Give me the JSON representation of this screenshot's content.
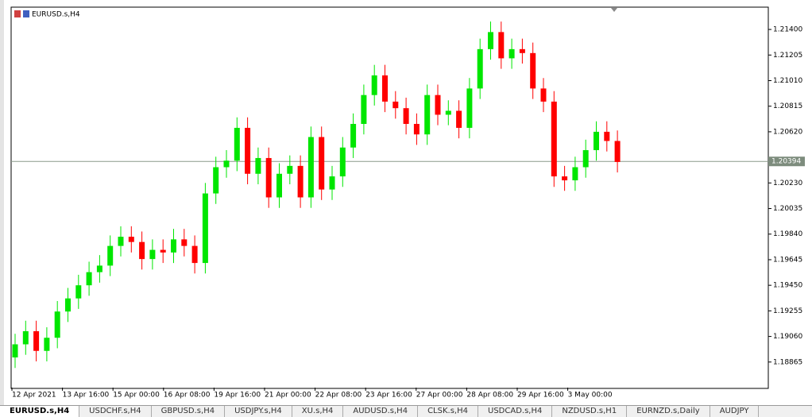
{
  "window": {
    "title": "EURUSD.s,H4"
  },
  "chart_data": {
    "type": "candlestick",
    "title": "EURUSD.s,H4",
    "ylim": [
      1.1867,
      1.2157
    ],
    "yticks": [
      {
        "value": 1.214,
        "label": "1.21400"
      },
      {
        "value": 1.21205,
        "label": "1.21205"
      },
      {
        "value": 1.2101,
        "label": "1.21010"
      },
      {
        "value": 1.20815,
        "label": "1.20815"
      },
      {
        "value": 1.2062,
        "label": "1.20620"
      },
      {
        "value": 1.2023,
        "label": "1.20230"
      },
      {
        "value": 1.20035,
        "label": "1.20035"
      },
      {
        "value": 1.1984,
        "label": "1.19840"
      },
      {
        "value": 1.19645,
        "label": "1.19645"
      },
      {
        "value": 1.1945,
        "label": "1.19450"
      },
      {
        "value": 1.19255,
        "label": "1.19255"
      },
      {
        "value": 1.1906,
        "label": "1.19060"
      },
      {
        "value": 1.18865,
        "label": "1.18865"
      }
    ],
    "time_labels": [
      "12 Apr 2021",
      "13 Apr 16:00",
      "15 Apr 00:00",
      "16 Apr 08:00",
      "19 Apr 16:00",
      "21 Apr 00:00",
      "22 Apr 08:00",
      "23 Apr 16:00",
      "27 Apr 00:00",
      "28 Apr 08:00",
      "29 Apr 16:00",
      "3 May 00:00"
    ],
    "current_price": {
      "value": 1.20394,
      "label": "1.20394"
    },
    "bull_color": "#00e600",
    "bear_color": "#ff0000",
    "open": [
      1.189,
      1.19,
      1.191,
      1.1895,
      1.1905,
      1.1925,
      1.1935,
      1.1945,
      1.1955,
      1.196,
      1.1975,
      1.1982,
      1.1978,
      1.1965,
      1.1972,
      1.197,
      1.198,
      1.1975,
      1.1962,
      1.2015,
      1.2035,
      1.204,
      1.2065,
      1.203,
      1.2042,
      1.2012,
      1.203,
      1.2036,
      1.2012,
      1.2058,
      1.2018,
      1.2028,
      1.205,
      1.2068,
      1.209,
      1.2105,
      1.2085,
      1.208,
      1.2068,
      1.206,
      1.209,
      1.2075,
      1.2078,
      1.2065,
      1.2095,
      1.2125,
      1.2138,
      1.2118,
      1.2125,
      1.2122,
      1.2095,
      1.2085,
      1.2028,
      1.2025,
      1.2035,
      1.2048,
      1.2062,
      1.2055
    ],
    "high": [
      1.1908,
      1.1918,
      1.1918,
      1.1913,
      1.1933,
      1.1943,
      1.1953,
      1.1963,
      1.1968,
      1.1983,
      1.199,
      1.199,
      1.1986,
      1.198,
      1.198,
      1.1988,
      1.1988,
      1.1983,
      1.2023,
      1.2043,
      1.2048,
      1.2073,
      1.2073,
      1.205,
      1.205,
      1.2038,
      1.2044,
      1.2044,
      1.2066,
      1.2066,
      1.2036,
      1.2058,
      1.2076,
      1.2098,
      1.2113,
      1.2113,
      1.2093,
      1.2088,
      1.2076,
      1.2098,
      1.2098,
      1.2086,
      1.2086,
      1.2103,
      1.2133,
      1.2146,
      1.2146,
      1.2133,
      1.2133,
      1.213,
      1.2103,
      1.2093,
      1.2036,
      1.2043,
      1.2056,
      1.207,
      1.207,
      1.2063
    ],
    "low": [
      1.1882,
      1.1892,
      1.1887,
      1.1887,
      1.1897,
      1.1917,
      1.1927,
      1.1937,
      1.1947,
      1.1952,
      1.1967,
      1.197,
      1.1957,
      1.1957,
      1.1962,
      1.1962,
      1.1967,
      1.1954,
      1.1954,
      1.2007,
      1.2027,
      1.2032,
      1.2022,
      1.2022,
      1.2004,
      1.2004,
      1.2022,
      1.2004,
      1.2004,
      1.201,
      1.201,
      1.202,
      1.2042,
      1.206,
      1.2082,
      1.2077,
      1.2072,
      1.206,
      1.2052,
      1.2052,
      1.2067,
      1.2067,
      1.2057,
      1.2057,
      1.2087,
      1.2117,
      1.211,
      1.211,
      1.2114,
      1.2087,
      1.2077,
      1.202,
      1.2017,
      1.2017,
      1.2027,
      1.204,
      1.2047,
      1.2031
    ],
    "close": [
      1.19,
      1.191,
      1.1895,
      1.1905,
      1.1925,
      1.1935,
      1.1945,
      1.1955,
      1.196,
      1.1975,
      1.1982,
      1.1978,
      1.1965,
      1.1972,
      1.197,
      1.198,
      1.1975,
      1.1962,
      1.2015,
      1.2035,
      1.204,
      1.2065,
      1.203,
      1.2042,
      1.2012,
      1.203,
      1.2036,
      1.2012,
      1.2058,
      1.2018,
      1.2028,
      1.205,
      1.2068,
      1.209,
      1.2105,
      1.2085,
      1.208,
      1.2068,
      1.206,
      1.209,
      1.2075,
      1.2078,
      1.2065,
      1.2095,
      1.2125,
      1.2138,
      1.2118,
      1.2125,
      1.2122,
      1.2095,
      1.2085,
      1.2028,
      1.2025,
      1.2035,
      1.2048,
      1.2062,
      1.2055,
      1.2039
    ]
  },
  "tabs": [
    "EURUSD.s,H4",
    "USDCHF.s,H4",
    "GBPUSD.s,H4",
    "USDJPY.s,H4",
    "XU.s,H4",
    "AUDUSD.s,H4",
    "CLSK.s,H4",
    "USDCAD.s,H4",
    "NZDUSD.s,H1",
    "EURNZD.s,Daily",
    "AUDJPY"
  ]
}
